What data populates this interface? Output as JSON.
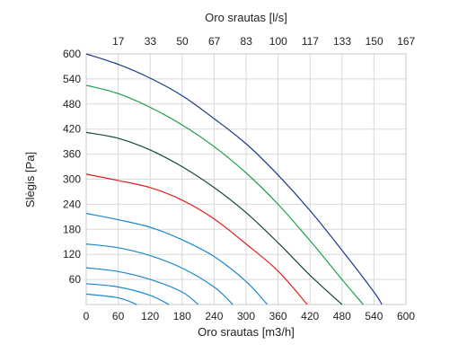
{
  "chart_data": {
    "type": "line",
    "title": "",
    "xlabel": "Oro srautas [m3/h]",
    "x2label": "Oro srautas [l/s]",
    "ylabel": "Slėgis [Pa]",
    "xlim": [
      0,
      600
    ],
    "ylim": [
      0,
      600
    ],
    "xticks": [
      "0",
      "60",
      "120",
      "180",
      "240",
      "300",
      "360",
      "420",
      "480",
      "540",
      "600"
    ],
    "x2ticks": [
      "17",
      "33",
      "50",
      "67",
      "83",
      "100",
      "117",
      "133",
      "150",
      "167"
    ],
    "yticks": [
      "60",
      "120",
      "180",
      "240",
      "300",
      "360",
      "420",
      "480",
      "540",
      "600"
    ],
    "grid": true,
    "series": [
      {
        "color": "#1a3a8a",
        "x": [
          0,
          60,
          120,
          180,
          240,
          300,
          360,
          420,
          480,
          540,
          555
        ],
        "y": [
          600,
          575,
          542,
          500,
          445,
          385,
          310,
          225,
          130,
          30,
          0
        ]
      },
      {
        "color": "#1aa04a",
        "x": [
          0,
          60,
          120,
          180,
          240,
          300,
          360,
          420,
          480,
          520
        ],
        "y": [
          525,
          505,
          472,
          430,
          378,
          315,
          240,
          153,
          60,
          0
        ]
      },
      {
        "color": "#0f4a2a",
        "x": [
          0,
          60,
          120,
          180,
          240,
          300,
          360,
          420,
          480
        ],
        "y": [
          412,
          398,
          370,
          330,
          280,
          220,
          148,
          70,
          0
        ]
      },
      {
        "color": "#e02020",
        "x": [
          0,
          60,
          120,
          180,
          240,
          300,
          360,
          415
        ],
        "y": [
          312,
          297,
          280,
          250,
          205,
          145,
          80,
          0
        ]
      },
      {
        "color": "#1a88cc",
        "x": [
          0,
          60,
          120,
          180,
          240,
          300,
          340
        ],
        "y": [
          218,
          203,
          185,
          155,
          115,
          55,
          0
        ]
      },
      {
        "color": "#1a88cc",
        "x": [
          0,
          60,
          120,
          180,
          240,
          275
        ],
        "y": [
          145,
          136,
          117,
          87,
          42,
          0
        ]
      },
      {
        "color": "#1a88cc",
        "x": [
          0,
          60,
          120,
          180,
          210
        ],
        "y": [
          88,
          79,
          60,
          30,
          0
        ]
      },
      {
        "color": "#1a88cc",
        "x": [
          0,
          60,
          120,
          155
        ],
        "y": [
          50,
          42,
          22,
          0
        ]
      },
      {
        "color": "#1a88cc",
        "x": [
          0,
          60,
          95
        ],
        "y": [
          25,
          16,
          0
        ]
      }
    ]
  }
}
